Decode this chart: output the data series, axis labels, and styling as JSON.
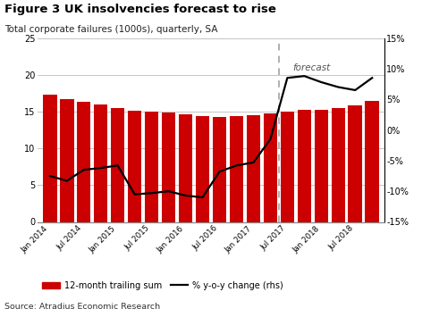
{
  "title": "Figure 3 UK insolvencies forecast to rise",
  "subtitle": "Total corporate failures (1000s), quarterly, SA",
  "source": "Source: Atradius Economic Research",
  "bar_values": [
    17.3,
    16.7,
    16.3,
    16.0,
    15.5,
    15.1,
    15.0,
    14.9,
    14.6,
    14.4,
    14.3,
    14.4,
    14.5,
    14.8,
    15.0,
    15.2,
    15.2,
    15.5,
    15.9,
    16.5
  ],
  "line_values": [
    -7.5,
    -8.3,
    -6.5,
    -6.2,
    -5.8,
    -10.5,
    -10.3,
    -10.0,
    -10.7,
    -11.0,
    -6.8,
    -5.8,
    -5.3,
    -1.5,
    8.5,
    8.8,
    7.8,
    7.0,
    6.5,
    8.5
  ],
  "bar_color": "#cc0000",
  "line_color": "#000000",
  "forecast_start_idx": 14,
  "ylim_left": [
    0,
    25
  ],
  "ylim_right": [
    -15,
    15
  ],
  "yticks_left": [
    0,
    5,
    10,
    15,
    20,
    25
  ],
  "yticks_right": [
    -15,
    -10,
    -5,
    0,
    5,
    10,
    15
  ],
  "xtick_labels": [
    "Jan 2014",
    "Jul 2014",
    "Jan 2015",
    "Jul 2015",
    "Jan 2016",
    "Jul 2016",
    "Jan 2017",
    "Jul 2017",
    "Jan 2018",
    "Jul 2018"
  ],
  "xtick_positions": [
    0,
    2,
    4,
    6,
    8,
    10,
    12,
    14,
    16,
    18
  ],
  "forecast_label": "forecast",
  "legend_bar": "12-month trailing sum",
  "legend_line": "% y-o-y change (rhs)",
  "background_color": "#ffffff",
  "grid_color": "#bbbbbb"
}
